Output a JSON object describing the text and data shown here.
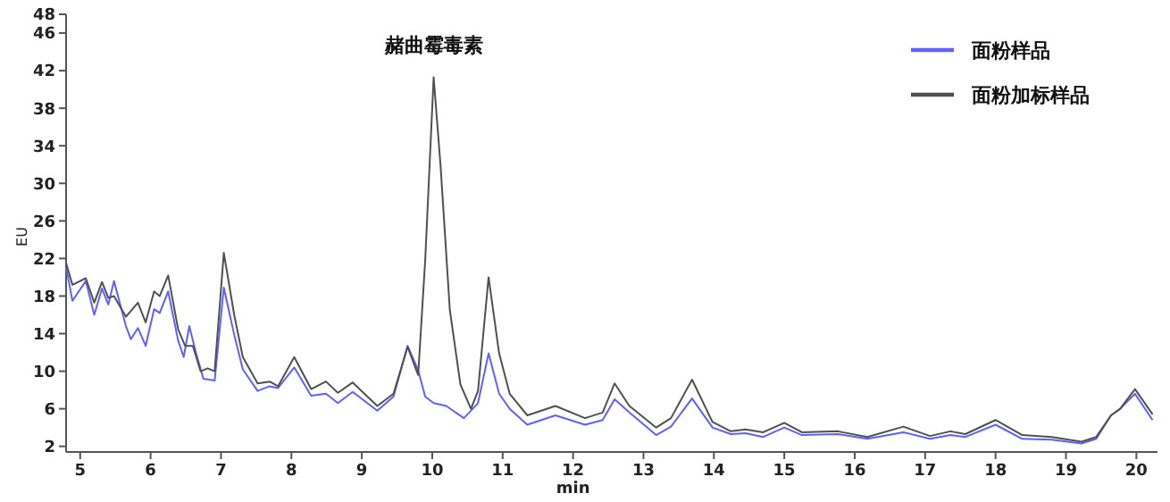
{
  "chart_data": {
    "type": "line",
    "xlabel": "min",
    "ylabel": "EU",
    "xlim": [
      4.8,
      20.3
    ],
    "ylim": [
      1.4,
      48
    ],
    "xticks": [
      5,
      6,
      7,
      8,
      9,
      10,
      11,
      12,
      13,
      14,
      15,
      16,
      17,
      18,
      19,
      20
    ],
    "yticks": [
      2,
      6,
      10,
      14,
      18,
      22,
      26,
      30,
      34,
      38,
      42,
      46,
      48
    ],
    "legend": "top right",
    "grid": false,
    "annotations": [
      {
        "text": "赭曲霉毒素",
        "x": 10.02,
        "y": 41.3
      }
    ],
    "series": [
      {
        "name": "面粉样品",
        "color": "#6060ff",
        "x": [
          4.8,
          4.89,
          5.08,
          5.2,
          5.31,
          5.4,
          5.48,
          5.65,
          5.72,
          5.82,
          5.93,
          6.05,
          6.13,
          6.25,
          6.39,
          6.47,
          6.55,
          6.65,
          6.75,
          6.91,
          7.04,
          7.19,
          7.31,
          7.52,
          7.69,
          7.81,
          8.04,
          8.28,
          8.49,
          8.66,
          8.87,
          9.22,
          9.45,
          9.65,
          9.8,
          9.9,
          10.02,
          10.2,
          10.45,
          10.65,
          10.8,
          10.95,
          11.1,
          11.35,
          11.75,
          12.17,
          12.42,
          12.59,
          12.8,
          13.18,
          13.39,
          13.69,
          13.98,
          14.24,
          14.45,
          14.7,
          15.0,
          15.25,
          15.76,
          16.18,
          16.69,
          17.07,
          17.36,
          17.57,
          18.0,
          18.38,
          18.8,
          19.22,
          19.43,
          19.64,
          19.77,
          19.98,
          20.23
        ],
        "values": [
          21.1,
          17.5,
          19.6,
          16,
          18.8,
          17.1,
          19.6,
          14.8,
          13.4,
          14.6,
          12.7,
          16.6,
          16.2,
          18.5,
          13.3,
          11.5,
          14.8,
          11.8,
          9.2,
          9.0,
          18.9,
          13.8,
          10.2,
          7.9,
          8.4,
          8.2,
          10.4,
          7.4,
          7.6,
          6.6,
          7.8,
          5.8,
          7.3,
          12.7,
          10.1,
          7.3,
          6.6,
          6.3,
          5.0,
          6.6,
          11.9,
          7.6,
          6.0,
          4.3,
          5.3,
          4.3,
          4.8,
          7.0,
          5.6,
          3.2,
          4.1,
          7.1,
          4.0,
          3.3,
          3.4,
          3.0,
          4.0,
          3.2,
          3.3,
          2.8,
          3.5,
          2.8,
          3.2,
          3.0,
          4.3,
          2.8,
          2.7,
          2.3,
          2.8,
          5.3,
          6.0,
          7.6,
          4.8
        ]
      },
      {
        "name": "面粉加标样品",
        "color": "#505050",
        "x": [
          4.8,
          4.89,
          5.08,
          5.2,
          5.31,
          5.4,
          5.48,
          5.65,
          5.82,
          5.93,
          6.05,
          6.13,
          6.25,
          6.39,
          6.49,
          6.6,
          6.71,
          6.81,
          6.91,
          7.04,
          7.19,
          7.31,
          7.52,
          7.69,
          7.81,
          8.04,
          8.28,
          8.49,
          8.66,
          8.87,
          9.22,
          9.45,
          9.65,
          9.8,
          9.9,
          10.02,
          10.12,
          10.25,
          10.4,
          10.55,
          10.65,
          10.8,
          10.95,
          11.1,
          11.35,
          11.75,
          12.17,
          12.42,
          12.59,
          12.8,
          13.18,
          13.39,
          13.69,
          13.98,
          14.24,
          14.45,
          14.7,
          15.0,
          15.25,
          15.76,
          16.18,
          16.69,
          17.07,
          17.36,
          17.57,
          18.0,
          18.38,
          18.8,
          19.22,
          19.43,
          19.64,
          19.77,
          19.98,
          20.23
        ],
        "values": [
          21.5,
          19.2,
          19.9,
          17.3,
          19.5,
          17.8,
          18.0,
          15.8,
          17.3,
          15.2,
          18.5,
          18.0,
          20.2,
          14.5,
          12.7,
          12.7,
          10.0,
          10.3,
          10.0,
          22.6,
          15.9,
          11.5,
          8.7,
          8.9,
          8.4,
          11.5,
          8.1,
          8.9,
          7.7,
          8.8,
          6.3,
          7.6,
          12.6,
          9.6,
          21.8,
          41.3,
          31.7,
          16.5,
          8.6,
          6.0,
          7.9,
          20.0,
          11.9,
          7.6,
          5.3,
          6.3,
          5.0,
          5.6,
          8.7,
          6.3,
          4.0,
          5.0,
          9.1,
          4.6,
          3.6,
          3.8,
          3.5,
          4.5,
          3.5,
          3.6,
          3.0,
          4.1,
          3.1,
          3.6,
          3.3,
          4.8,
          3.2,
          3.0,
          2.5,
          3.0,
          5.3,
          6.0,
          8.1,
          5.4
        ]
      }
    ]
  }
}
